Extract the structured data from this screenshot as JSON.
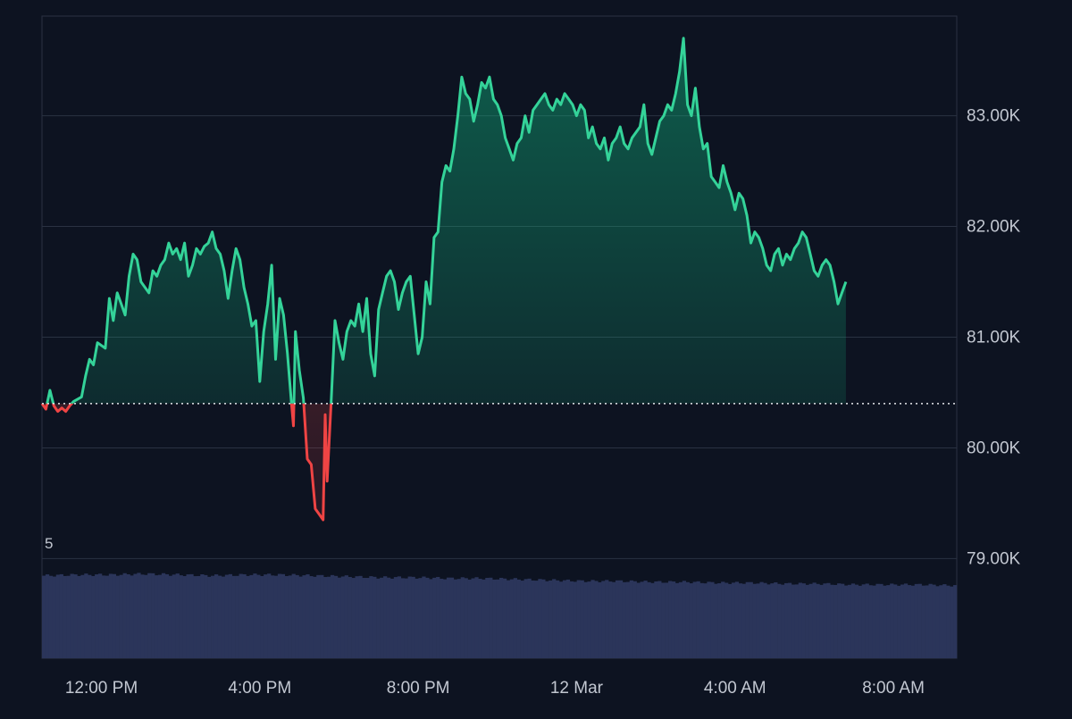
{
  "chart_data": {
    "type": "area",
    "title": "",
    "xlabel": "",
    "ylabel": "",
    "baseline": 80400,
    "ylim": [
      78100,
      83900
    ],
    "y_ticks": [
      {
        "value": 79000,
        "label": "79.00K"
      },
      {
        "value": 80000,
        "label": "80.00K"
      },
      {
        "value": 81000,
        "label": "81.00K"
      },
      {
        "value": 82000,
        "label": "82.00K"
      },
      {
        "value": 83000,
        "label": "83.00K"
      }
    ],
    "x_ticks": [
      "12:00 PM",
      "4:00 PM",
      "8:00 PM",
      "12 Mar",
      "4:00 AM",
      "8:00 AM"
    ],
    "x_tick_hours": [
      2,
      6,
      10,
      14,
      18,
      22
    ],
    "x_range_hours": [
      0.5,
      23.6
    ],
    "volume_label": "5",
    "series": [
      {
        "values": [
          [
            0.5,
            80400
          ],
          [
            0.6,
            80350
          ],
          [
            0.7,
            80520
          ],
          [
            0.8,
            80380
          ],
          [
            0.9,
            80330
          ],
          [
            1.0,
            80360
          ],
          [
            1.1,
            80330
          ],
          [
            1.2,
            80380
          ],
          [
            1.3,
            80420
          ],
          [
            1.5,
            80460
          ],
          [
            1.6,
            80650
          ],
          [
            1.7,
            80800
          ],
          [
            1.8,
            80750
          ],
          [
            1.9,
            80950
          ],
          [
            2.1,
            80900
          ],
          [
            2.2,
            81350
          ],
          [
            2.3,
            81150
          ],
          [
            2.4,
            81400
          ],
          [
            2.5,
            81300
          ],
          [
            2.6,
            81200
          ],
          [
            2.7,
            81550
          ],
          [
            2.8,
            81750
          ],
          [
            2.9,
            81700
          ],
          [
            3.0,
            81500
          ],
          [
            3.1,
            81450
          ],
          [
            3.2,
            81400
          ],
          [
            3.3,
            81600
          ],
          [
            3.4,
            81550
          ],
          [
            3.5,
            81650
          ],
          [
            3.6,
            81700
          ],
          [
            3.7,
            81850
          ],
          [
            3.8,
            81750
          ],
          [
            3.9,
            81800
          ],
          [
            4.0,
            81700
          ],
          [
            4.1,
            81850
          ],
          [
            4.2,
            81550
          ],
          [
            4.3,
            81650
          ],
          [
            4.4,
            81800
          ],
          [
            4.5,
            81750
          ],
          [
            4.6,
            81820
          ],
          [
            4.7,
            81850
          ],
          [
            4.8,
            81950
          ],
          [
            4.9,
            81800
          ],
          [
            5.0,
            81750
          ],
          [
            5.1,
            81600
          ],
          [
            5.2,
            81350
          ],
          [
            5.3,
            81600
          ],
          [
            5.4,
            81800
          ],
          [
            5.5,
            81700
          ],
          [
            5.6,
            81450
          ],
          [
            5.7,
            81300
          ],
          [
            5.8,
            81100
          ],
          [
            5.9,
            81150
          ],
          [
            6.0,
            80600
          ],
          [
            6.1,
            81050
          ],
          [
            6.2,
            81300
          ],
          [
            6.3,
            81650
          ],
          [
            6.4,
            80800
          ],
          [
            6.5,
            81350
          ],
          [
            6.6,
            81200
          ],
          [
            6.7,
            80850
          ],
          [
            6.8,
            80400
          ],
          [
            6.85,
            80200
          ],
          [
            6.9,
            81050
          ],
          [
            7.0,
            80700
          ],
          [
            7.1,
            80450
          ],
          [
            7.2,
            79900
          ],
          [
            7.3,
            79850
          ],
          [
            7.4,
            79450
          ],
          [
            7.5,
            79400
          ],
          [
            7.6,
            79350
          ],
          [
            7.65,
            80300
          ],
          [
            7.7,
            79700
          ],
          [
            7.8,
            80400
          ],
          [
            7.9,
            81150
          ],
          [
            8.0,
            80950
          ],
          [
            8.1,
            80800
          ],
          [
            8.2,
            81050
          ],
          [
            8.3,
            81150
          ],
          [
            8.4,
            81100
          ],
          [
            8.5,
            81300
          ],
          [
            8.6,
            81050
          ],
          [
            8.7,
            81350
          ],
          [
            8.8,
            80850
          ],
          [
            8.9,
            80650
          ],
          [
            9.0,
            81250
          ],
          [
            9.1,
            81400
          ],
          [
            9.2,
            81550
          ],
          [
            9.3,
            81600
          ],
          [
            9.4,
            81500
          ],
          [
            9.5,
            81250
          ],
          [
            9.6,
            81400
          ],
          [
            9.7,
            81500
          ],
          [
            9.8,
            81550
          ],
          [
            9.9,
            81200
          ],
          [
            10.0,
            80850
          ],
          [
            10.1,
            81000
          ],
          [
            10.2,
            81500
          ],
          [
            10.3,
            81300
          ],
          [
            10.4,
            81900
          ],
          [
            10.5,
            81950
          ],
          [
            10.6,
            82400
          ],
          [
            10.7,
            82550
          ],
          [
            10.8,
            82500
          ],
          [
            10.9,
            82700
          ],
          [
            11.0,
            83000
          ],
          [
            11.1,
            83350
          ],
          [
            11.2,
            83200
          ],
          [
            11.3,
            83150
          ],
          [
            11.4,
            82950
          ],
          [
            11.5,
            83100
          ],
          [
            11.6,
            83300
          ],
          [
            11.7,
            83250
          ],
          [
            11.8,
            83350
          ],
          [
            11.9,
            83150
          ],
          [
            12.0,
            83100
          ],
          [
            12.1,
            83000
          ],
          [
            12.2,
            82800
          ],
          [
            12.3,
            82700
          ],
          [
            12.4,
            82600
          ],
          [
            12.5,
            82750
          ],
          [
            12.6,
            82800
          ],
          [
            12.7,
            83000
          ],
          [
            12.8,
            82850
          ],
          [
            12.9,
            83050
          ],
          [
            13.0,
            83100
          ],
          [
            13.1,
            83150
          ],
          [
            13.2,
            83200
          ],
          [
            13.3,
            83100
          ],
          [
            13.4,
            83050
          ],
          [
            13.5,
            83150
          ],
          [
            13.6,
            83100
          ],
          [
            13.7,
            83200
          ],
          [
            13.8,
            83150
          ],
          [
            13.9,
            83100
          ],
          [
            14.0,
            83000
          ],
          [
            14.1,
            83100
          ],
          [
            14.2,
            83050
          ],
          [
            14.3,
            82800
          ],
          [
            14.4,
            82900
          ],
          [
            14.5,
            82750
          ],
          [
            14.6,
            82700
          ],
          [
            14.7,
            82800
          ],
          [
            14.8,
            82600
          ],
          [
            14.9,
            82750
          ],
          [
            15.0,
            82800
          ],
          [
            15.1,
            82900
          ],
          [
            15.2,
            82750
          ],
          [
            15.3,
            82700
          ],
          [
            15.4,
            82800
          ],
          [
            15.5,
            82850
          ],
          [
            15.6,
            82900
          ],
          [
            15.7,
            83100
          ],
          [
            15.8,
            82750
          ],
          [
            15.9,
            82650
          ],
          [
            16.0,
            82800
          ],
          [
            16.1,
            82950
          ],
          [
            16.2,
            83000
          ],
          [
            16.3,
            83100
          ],
          [
            16.4,
            83050
          ],
          [
            16.5,
            83200
          ],
          [
            16.6,
            83400
          ],
          [
            16.7,
            83700
          ],
          [
            16.8,
            83100
          ],
          [
            16.9,
            83000
          ],
          [
            17.0,
            83250
          ],
          [
            17.1,
            82900
          ],
          [
            17.2,
            82700
          ],
          [
            17.3,
            82750
          ],
          [
            17.4,
            82450
          ],
          [
            17.5,
            82400
          ],
          [
            17.6,
            82350
          ],
          [
            17.7,
            82550
          ],
          [
            17.8,
            82400
          ],
          [
            17.9,
            82300
          ],
          [
            18.0,
            82150
          ],
          [
            18.1,
            82300
          ],
          [
            18.2,
            82250
          ],
          [
            18.3,
            82100
          ],
          [
            18.4,
            81850
          ],
          [
            18.5,
            81950
          ],
          [
            18.6,
            81900
          ],
          [
            18.7,
            81800
          ],
          [
            18.8,
            81650
          ],
          [
            18.9,
            81600
          ],
          [
            19.0,
            81750
          ],
          [
            19.1,
            81800
          ],
          [
            19.2,
            81650
          ],
          [
            19.3,
            81750
          ],
          [
            19.4,
            81700
          ],
          [
            19.5,
            81800
          ],
          [
            19.6,
            81850
          ],
          [
            19.7,
            81950
          ],
          [
            19.8,
            81900
          ],
          [
            19.9,
            81750
          ],
          [
            20.0,
            81600
          ],
          [
            20.1,
            81550
          ],
          [
            20.2,
            81650
          ],
          [
            20.3,
            81700
          ],
          [
            20.4,
            81650
          ],
          [
            20.5,
            81500
          ],
          [
            20.6,
            81300
          ],
          [
            20.7,
            81400
          ],
          [
            20.8,
            81500
          ]
        ]
      }
    ],
    "volume_hint": [
      0.92,
      0.93,
      0.93,
      0.94,
      0.93,
      0.92,
      0.93,
      0.93,
      0.92,
      0.91,
      0.9,
      0.9,
      0.89,
      0.89,
      0.88,
      0.87,
      0.86,
      0.86,
      0.85,
      0.85,
      0.84,
      0.84,
      0.83,
      0.83,
      0.82,
      0.82,
      0.82,
      0.81
    ],
    "colors": {
      "up_line": "#34d399",
      "down_line": "#ef4444",
      "up_fill": "#10b981",
      "down_fill": "#ef4444",
      "grid": "#2a3242",
      "volume": "#2b355a",
      "text": "#c2c7d1",
      "background": "#0d1321"
    }
  }
}
